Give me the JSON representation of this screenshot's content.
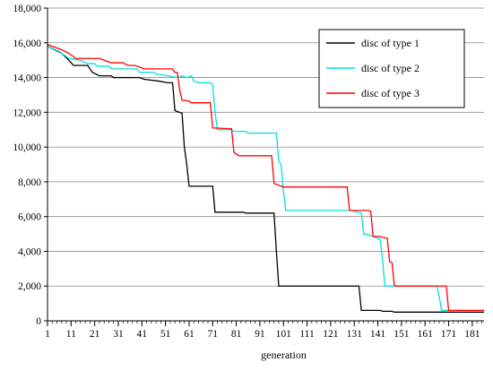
{
  "chart_data": {
    "type": "line",
    "title": "",
    "xlabel": "generation",
    "ylabel": "",
    "xlim": [
      1,
      186
    ],
    "ylim": [
      0,
      18000
    ],
    "grid": "horizontal",
    "legend_position": "top-right",
    "x_ticks": [
      1,
      11,
      21,
      31,
      41,
      51,
      61,
      71,
      81,
      91,
      101,
      111,
      121,
      131,
      141,
      151,
      161,
      171,
      181
    ],
    "y_ticks": [
      0,
      2000,
      4000,
      6000,
      8000,
      10000,
      12000,
      14000,
      16000,
      18000
    ],
    "y_tick_labels": [
      "0",
      "2,000",
      "4,000",
      "6,000",
      "8,000",
      "10,000",
      "12,000",
      "14,000",
      "16,000",
      "18,000"
    ],
    "x_tick_labels": [
      "1",
      "11",
      "21",
      "31",
      "41",
      "51",
      "61",
      "71",
      "81",
      "91",
      "101",
      "111",
      "121",
      "131",
      "141",
      "151",
      "161",
      "171",
      "181"
    ],
    "series": [
      {
        "name": "disc of type 1",
        "color": "#000000",
        "points": [
          [
            1,
            15800
          ],
          [
            4,
            15600
          ],
          [
            7,
            15400
          ],
          [
            10,
            15000
          ],
          [
            12,
            14700
          ],
          [
            18,
            14700
          ],
          [
            20,
            14300
          ],
          [
            23,
            14100
          ],
          [
            28,
            14100
          ],
          [
            29,
            14000
          ],
          [
            40,
            14000
          ],
          [
            42,
            13900
          ],
          [
            48,
            13800
          ],
          [
            52,
            13700
          ],
          [
            54,
            13700
          ],
          [
            55,
            12100
          ],
          [
            57,
            12000
          ],
          [
            58,
            11950
          ],
          [
            59,
            10000
          ],
          [
            60,
            9000
          ],
          [
            61,
            7750
          ],
          [
            71,
            7750
          ],
          [
            72,
            6250
          ],
          [
            84,
            6250
          ],
          [
            85,
            6200
          ],
          [
            97,
            6200
          ],
          [
            98,
            4000
          ],
          [
            99,
            2000
          ],
          [
            133,
            2000
          ],
          [
            134,
            600
          ],
          [
            142,
            600
          ],
          [
            143,
            550
          ],
          [
            147,
            550
          ],
          [
            148,
            500
          ],
          [
            186,
            500
          ]
        ]
      },
      {
        "name": "disc of type 2",
        "color": "#00e0e0",
        "points": [
          [
            1,
            15800
          ],
          [
            6,
            15500
          ],
          [
            10,
            15100
          ],
          [
            15,
            15000
          ],
          [
            18,
            14800
          ],
          [
            21,
            14800
          ],
          [
            22,
            14650
          ],
          [
            27,
            14650
          ],
          [
            28,
            14500
          ],
          [
            39,
            14500
          ],
          [
            40,
            14300
          ],
          [
            46,
            14300
          ],
          [
            47,
            14200
          ],
          [
            52,
            14100
          ],
          [
            54,
            14050
          ],
          [
            56,
            14000
          ],
          [
            58,
            14100
          ],
          [
            60,
            14000
          ],
          [
            62,
            14100
          ],
          [
            63,
            13800
          ],
          [
            65,
            13700
          ],
          [
            70,
            13700
          ],
          [
            71,
            13600
          ],
          [
            72,
            12000
          ],
          [
            73,
            11000
          ],
          [
            79,
            11000
          ],
          [
            80,
            10900
          ],
          [
            85,
            10900
          ],
          [
            86,
            10800
          ],
          [
            98,
            10800
          ],
          [
            99,
            9200
          ],
          [
            100,
            9000
          ],
          [
            101,
            7400
          ],
          [
            102,
            6350
          ],
          [
            130,
            6350
          ],
          [
            131,
            6300
          ],
          [
            134,
            6200
          ],
          [
            135,
            5000
          ],
          [
            138,
            4900
          ],
          [
            140,
            4800
          ],
          [
            142,
            4700
          ],
          [
            143,
            3500
          ],
          [
            144,
            2000
          ],
          [
            166,
            2000
          ],
          [
            167,
            1400
          ],
          [
            168,
            600
          ],
          [
            186,
            600
          ]
        ]
      },
      {
        "name": "disc of type 3",
        "color": "#ff0000",
        "points": [
          [
            1,
            15900
          ],
          [
            7,
            15600
          ],
          [
            10,
            15400
          ],
          [
            13,
            15100
          ],
          [
            23,
            15100
          ],
          [
            25,
            15000
          ],
          [
            27,
            14900
          ],
          [
            28,
            14850
          ],
          [
            33,
            14850
          ],
          [
            35,
            14700
          ],
          [
            38,
            14700
          ],
          [
            40,
            14600
          ],
          [
            42,
            14500
          ],
          [
            54,
            14500
          ],
          [
            55,
            14300
          ],
          [
            56,
            14300
          ],
          [
            57,
            13300
          ],
          [
            58,
            12700
          ],
          [
            61,
            12650
          ],
          [
            62,
            12550
          ],
          [
            70,
            12550
          ],
          [
            71,
            11100
          ],
          [
            79,
            11050
          ],
          [
            80,
            9700
          ],
          [
            82,
            9500
          ],
          [
            96,
            9500
          ],
          [
            97,
            7900
          ],
          [
            99,
            7800
          ],
          [
            101,
            7700
          ],
          [
            128,
            7700
          ],
          [
            129,
            6350
          ],
          [
            137,
            6350
          ],
          [
            138,
            6300
          ],
          [
            139,
            4850
          ],
          [
            142,
            4850
          ],
          [
            143,
            4800
          ],
          [
            145,
            4750
          ],
          [
            146,
            3400
          ],
          [
            147,
            3350
          ],
          [
            148,
            2000
          ],
          [
            170,
            2000
          ],
          [
            171,
            600
          ],
          [
            186,
            600
          ]
        ]
      }
    ]
  }
}
